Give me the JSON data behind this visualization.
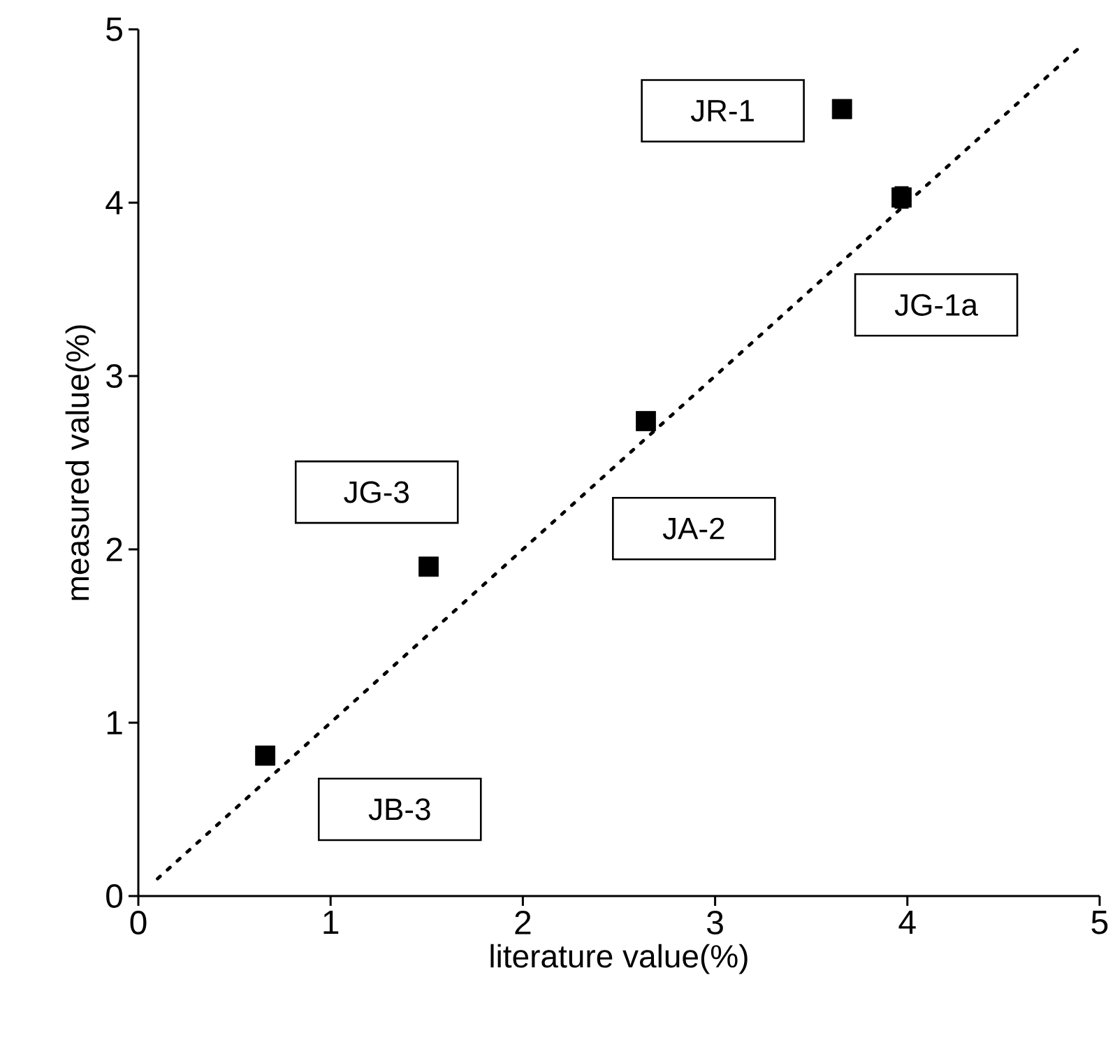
{
  "chart_data": {
    "type": "scatter",
    "xlabel": "literature value(%)",
    "ylabel": "measured value(%)",
    "xlim": [
      0,
      5
    ],
    "ylim": [
      0,
      5
    ],
    "xticks": [
      0,
      1,
      2,
      3,
      4,
      5
    ],
    "yticks": [
      0,
      1,
      2,
      3,
      4,
      5
    ],
    "grid": false,
    "series": [
      {
        "color": "#000000",
        "marker": "square",
        "x": [
          0.66,
          1.51,
          2.64,
          3.66,
          3.97
        ],
        "values": [
          0.81,
          1.9,
          2.74,
          4.54,
          4.03
        ],
        "errors": [
          null,
          null,
          null,
          null,
          0.06
        ]
      },
      {
        "type": "line",
        "color": "#000000",
        "line_style": "dotted",
        "x": [
          0.1,
          4.9
        ],
        "values": [
          0.1,
          4.9
        ]
      }
    ],
    "annotations": [
      "JR-1",
      "JG-1a",
      "JG-3",
      "JA-2",
      "JB-3"
    ]
  }
}
